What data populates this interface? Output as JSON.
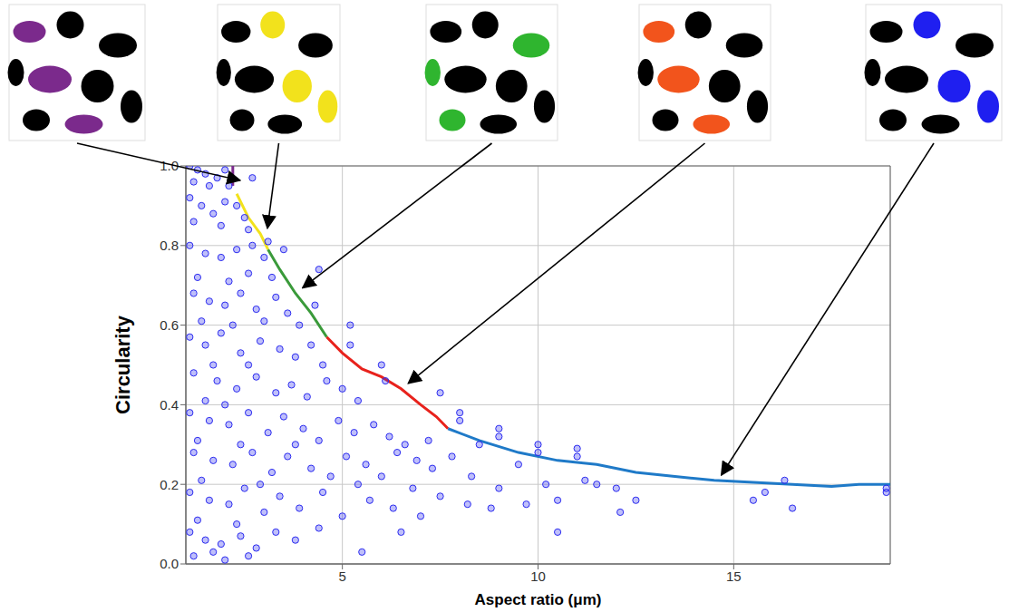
{
  "chart_data": {
    "type": "scatter",
    "x_label": "Aspect ratio (μm)",
    "y_label": "Circularity",
    "xlim": [
      1,
      19
    ],
    "xticks": [
      5,
      10,
      15
    ],
    "ylim": [
      0,
      1
    ],
    "yticks": [
      {
        "value": 0,
        "label": "0.0"
      },
      0.2,
      0.4,
      0.6,
      0.8,
      {
        "value": 1,
        "label": "1.0"
      }
    ],
    "grid": true,
    "series": [
      {
        "type": "scatter",
        "color": "#2b2bf0",
        "marker": "circle",
        "x": [
          1.1,
          1.3,
          1.5,
          1.8,
          2.0,
          1.2,
          1.6,
          2.1,
          1.1,
          1.4,
          1.7,
          2.0,
          2.3,
          1.2,
          1.9,
          2.5,
          2.6,
          1.1,
          1.5,
          1.9,
          2.3,
          2.7,
          3.0,
          1.3,
          2.1,
          2.6,
          3.2,
          1.2,
          1.6,
          2.0,
          2.4,
          2.8,
          3.3,
          3.6,
          1.4,
          2.2,
          3.0,
          3.9,
          1.1,
          1.5,
          1.9,
          2.4,
          2.9,
          3.4,
          3.8,
          4.2,
          1.7,
          2.6,
          4.5,
          1.2,
          1.8,
          2.3,
          2.8,
          3.3,
          3.7,
          4.1,
          4.6,
          5.0,
          5.4,
          1.5,
          2.0,
          1.1,
          1.6,
          2.1,
          2.6,
          3.1,
          3.5,
          4.0,
          4.4,
          4.9,
          5.3,
          5.8,
          6.2,
          6.6,
          1.3,
          2.4,
          3.8,
          1.2,
          1.7,
          2.2,
          2.7,
          3.2,
          3.6,
          4.2,
          4.7,
          5.1,
          5.6,
          6.0,
          6.4,
          6.9,
          7.3,
          7.8,
          1.4,
          2.9,
          5.4,
          1.1,
          1.6,
          2.1,
          2.5,
          3.0,
          3.4,
          3.9,
          4.5,
          5.0,
          5.7,
          6.3,
          6.8,
          7.5,
          8.2,
          8.8,
          1.3,
          2.3,
          1.1,
          1.5,
          1.9,
          2.4,
          2.8,
          3.3,
          3.8,
          4.4,
          5.5,
          1.2,
          2.0,
          2.6,
          1.7,
          2.7,
          3.1,
          3.5,
          4.4,
          4.3,
          5.2,
          5.2,
          6.0,
          6.1,
          7.5,
          8.0,
          8.0,
          9.0,
          9.0,
          10.0,
          10.0,
          11.0,
          11.0,
          7.2,
          8.5,
          9.5,
          12.0,
          11.5,
          10.5,
          10.5,
          15.5,
          15.8,
          16.3,
          16.5,
          18.9,
          18.9,
          9.0,
          9.7,
          8.3,
          12.1,
          11.2,
          7.0,
          6.5,
          10.2,
          12.5
        ],
        "values": [
          1.0,
          0.99,
          0.98,
          0.97,
          0.99,
          0.96,
          0.95,
          0.95,
          0.92,
          0.9,
          0.88,
          0.91,
          0.9,
          0.86,
          0.85,
          0.87,
          0.84,
          0.8,
          0.78,
          0.77,
          0.79,
          0.8,
          0.77,
          0.72,
          0.71,
          0.73,
          0.72,
          0.68,
          0.66,
          0.65,
          0.68,
          0.64,
          0.67,
          0.63,
          0.61,
          0.6,
          0.61,
          0.6,
          0.57,
          0.55,
          0.58,
          0.53,
          0.56,
          0.54,
          0.52,
          0.55,
          0.5,
          0.5,
          0.5,
          0.48,
          0.46,
          0.44,
          0.47,
          0.43,
          0.45,
          0.42,
          0.46,
          0.44,
          0.41,
          0.41,
          0.4,
          0.38,
          0.36,
          0.35,
          0.38,
          0.33,
          0.37,
          0.34,
          0.31,
          0.36,
          0.33,
          0.35,
          0.32,
          0.3,
          0.31,
          0.3,
          0.3,
          0.28,
          0.26,
          0.25,
          0.28,
          0.23,
          0.27,
          0.24,
          0.22,
          0.27,
          0.25,
          0.22,
          0.28,
          0.26,
          0.24,
          0.27,
          0.21,
          0.2,
          0.2,
          0.18,
          0.16,
          0.15,
          0.19,
          0.13,
          0.17,
          0.14,
          0.18,
          0.12,
          0.16,
          0.14,
          0.19,
          0.17,
          0.15,
          0.14,
          0.11,
          0.1,
          0.08,
          0.06,
          0.05,
          0.07,
          0.04,
          0.08,
          0.06,
          0.09,
          0.03,
          0.02,
          0.01,
          0.02,
          0.03,
          0.97,
          0.81,
          0.79,
          0.74,
          0.65,
          0.6,
          0.55,
          0.5,
          0.46,
          0.43,
          0.38,
          0.36,
          0.34,
          0.32,
          0.3,
          0.28,
          0.29,
          0.27,
          0.31,
          0.3,
          0.25,
          0.19,
          0.2,
          0.16,
          0.08,
          0.16,
          0.18,
          0.21,
          0.14,
          0.19,
          0.18,
          0.19,
          0.15,
          0.22,
          0.13,
          0.21,
          0.12,
          0.08,
          0.2,
          0.16
        ]
      },
      {
        "type": "line",
        "color": "#7b2a8c",
        "line_style": "solid",
        "x": [
          2.2,
          2.2
        ],
        "values": [
          1.0,
          0.95
        ]
      },
      {
        "type": "line",
        "color": "#f2e21c",
        "line_style": "solid",
        "x": [
          2.3,
          2.6,
          2.9,
          3.1
        ],
        "values": [
          0.93,
          0.87,
          0.83,
          0.79
        ]
      },
      {
        "type": "line",
        "color": "#3a9a3a",
        "line_style": "solid",
        "x": [
          3.1,
          3.4,
          3.8,
          4.2,
          4.6
        ],
        "values": [
          0.79,
          0.74,
          0.68,
          0.63,
          0.57
        ]
      },
      {
        "type": "line",
        "color": "#e8221c",
        "line_style": "solid",
        "x": [
          4.6,
          5.0,
          5.5,
          6.0,
          6.5,
          7.0,
          7.4,
          7.7
        ],
        "values": [
          0.57,
          0.53,
          0.49,
          0.47,
          0.44,
          0.4,
          0.37,
          0.34
        ]
      },
      {
        "type": "line",
        "color": "#1f7ac8",
        "line_style": "solid",
        "x": [
          7.7,
          8.5,
          9.5,
          10.5,
          11.5,
          12.5,
          13.5,
          14.5,
          15.5,
          16.5,
          17.5,
          18.2,
          18.6,
          19.0
        ],
        "values": [
          0.34,
          0.31,
          0.28,
          0.26,
          0.25,
          0.23,
          0.22,
          0.21,
          0.205,
          0.2,
          0.195,
          0.2,
          0.2,
          0.2
        ]
      }
    ]
  }
}
